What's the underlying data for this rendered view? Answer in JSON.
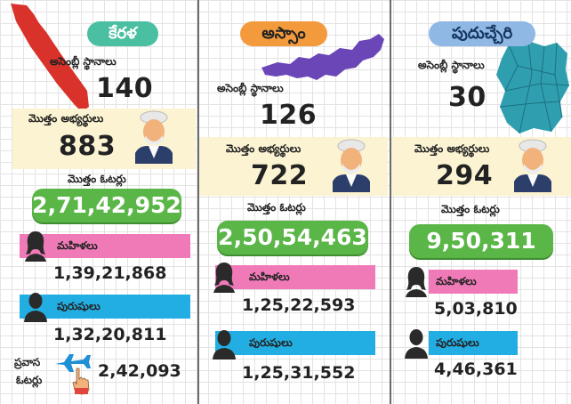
{
  "states": [
    {
      "name": "కేరళ",
      "assembly_label": "అసెంబ్లీ స్థానాలు",
      "assembly_seats": "140",
      "candidates_label": "మొత్తం అభ్యర్థులు",
      "candidates": "883",
      "voters_label": "మొత్తం ఓటర్లు",
      "total_voters": "2,71,42,952",
      "women_label": "మహిళలు",
      "women": "1,39,21,868",
      "men_label": "పురుషులు",
      "men": "1,32,20,811",
      "overseas_label_line1": "ప్రవాస",
      "overseas_label_line2": "ఓటర్లు",
      "overseas": "2,42,093"
    },
    {
      "name": "అస్సాం",
      "assembly_label": "అసెంబ్లీ స్థానాలు",
      "assembly_seats": "126",
      "candidates_label": "మొత్తం అభ్యర్థులు",
      "candidates": "722",
      "voters_label": "మొత్తం ఓటర్లు",
      "total_voters": "2,50,54,463",
      "women_label": "మహిళలు",
      "women": "1,25,22,593",
      "men_label": "పురుషులు",
      "men": "1,25,31,552"
    },
    {
      "name": "పుదుచ్చేరి",
      "assembly_label": "అసెంబ్లీ స్థానాలు",
      "assembly_seats": "30",
      "candidates_label": "మొత్తం అభ్యర్థులు",
      "candidates": "294",
      "voters_label": "మొత్తం ఓటర్లు",
      "total_voters": "9,50,311",
      "women_label": "మహిళలు",
      "women": "5,03,810",
      "men_label": "పురుషులు",
      "men": "4,46,361"
    }
  ],
  "colors": {
    "kerala_title": "#4bbfa1",
    "assam_title": "#f39a3c",
    "puducherry_title": "#8fb8e4",
    "kerala_map": "#d9322a",
    "assam_map": "#6a46b6",
    "puducherry_map": "#2f9fb0",
    "women_bar": "#f07ab8",
    "men_bar": "#23aee3",
    "total_pill": "#5ab646",
    "candidate_band": "#fbf3d2"
  },
  "icons": [
    "woman-silhouette-icon",
    "man-silhouette-icon",
    "candidate-portrait-icon",
    "airplane-icon",
    "hand-icon",
    "state-map-icon"
  ]
}
